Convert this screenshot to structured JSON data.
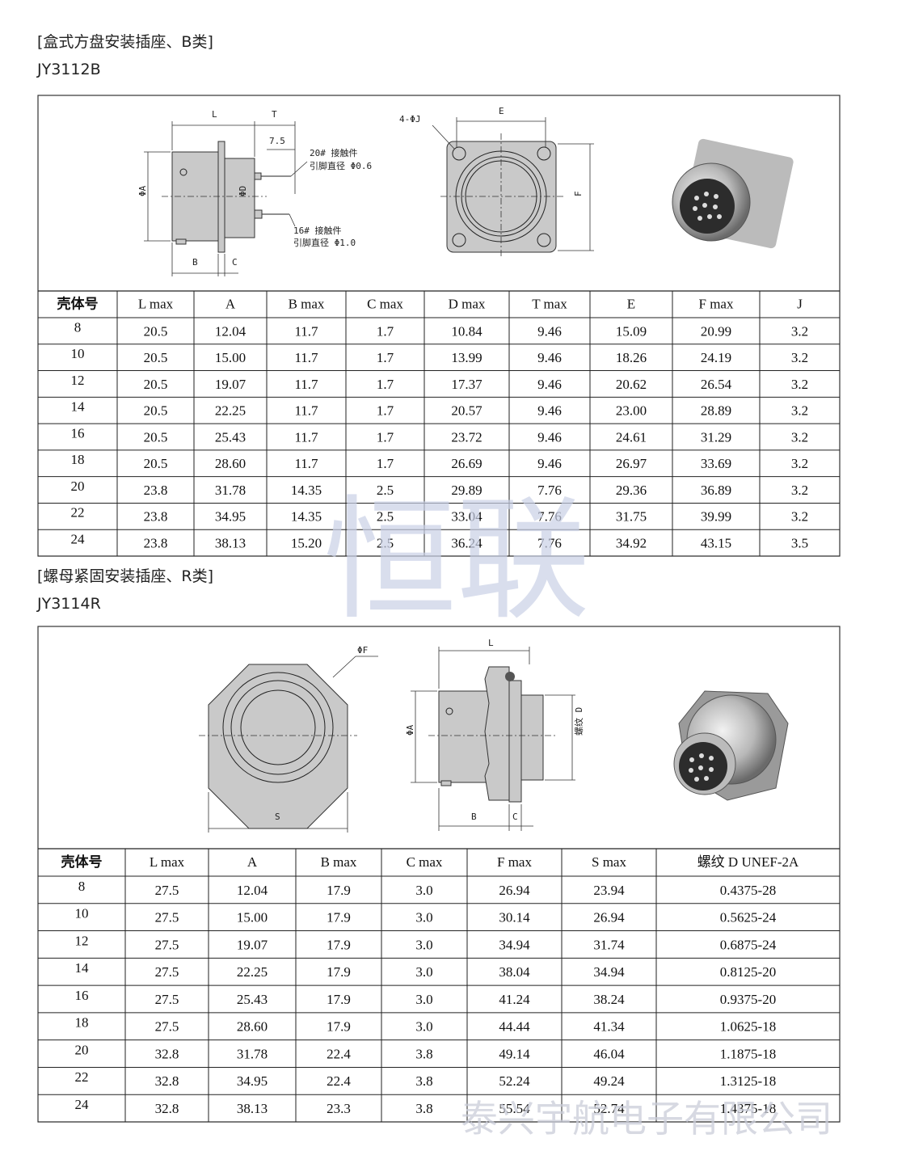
{
  "sections": [
    {
      "title": "[盒式方盘安装插座、B类]",
      "model": "JY3112B",
      "diagram_labels": [
        "L",
        "T",
        "7.5",
        "20# 接触件",
        "引脚直径 Φ0.6",
        "ΦA",
        "ΦD",
        "16# 接触件",
        "引脚直径 Φ1.0",
        "B",
        "C",
        "4-ΦJ",
        "E",
        "F"
      ],
      "table": {
        "header": [
          "壳体号",
          "L max",
          "A",
          "B max",
          "C max",
          "D max",
          "T max",
          "E",
          "F max",
          "J"
        ],
        "rows": [
          [
            "8",
            "20.5",
            "12.04",
            "11.7",
            "1.7",
            "10.84",
            "9.46",
            "15.09",
            "20.99",
            "3.2"
          ],
          [
            "10",
            "20.5",
            "15.00",
            "11.7",
            "1.7",
            "13.99",
            "9.46",
            "18.26",
            "24.19",
            "3.2"
          ],
          [
            "12",
            "20.5",
            "19.07",
            "11.7",
            "1.7",
            "17.37",
            "9.46",
            "20.62",
            "26.54",
            "3.2"
          ],
          [
            "14",
            "20.5",
            "22.25",
            "11.7",
            "1.7",
            "20.57",
            "9.46",
            "23.00",
            "28.89",
            "3.2"
          ],
          [
            "16",
            "20.5",
            "25.43",
            "11.7",
            "1.7",
            "23.72",
            "9.46",
            "24.61",
            "31.29",
            "3.2"
          ],
          [
            "18",
            "20.5",
            "28.60",
            "11.7",
            "1.7",
            "26.69",
            "9.46",
            "26.97",
            "33.69",
            "3.2"
          ],
          [
            "20",
            "23.8",
            "31.78",
            "14.35",
            "2.5",
            "29.89",
            "7.76",
            "29.36",
            "36.89",
            "3.2"
          ],
          [
            "22",
            "23.8",
            "34.95",
            "14.35",
            "2.5",
            "33.04",
            "7.76",
            "31.75",
            "39.99",
            "3.2"
          ],
          [
            "24",
            "23.8",
            "38.13",
            "15.20",
            "2.5",
            "36.24",
            "7.76",
            "34.92",
            "43.15",
            "3.5"
          ]
        ]
      }
    },
    {
      "title": "[螺母紧固安装插座、R类]",
      "model": "JY3114R",
      "diagram_labels": [
        "ΦF",
        "S",
        "L",
        "ΦA",
        "螺纹 D",
        "B",
        "C"
      ],
      "table": {
        "header": [
          "壳体号",
          "L max",
          "A",
          "B max",
          "C max",
          "F max",
          "S max",
          "螺纹 D UNEF-2A"
        ],
        "rows": [
          [
            "8",
            "27.5",
            "12.04",
            "17.9",
            "3.0",
            "26.94",
            "23.94",
            "0.4375-28"
          ],
          [
            "10",
            "27.5",
            "15.00",
            "17.9",
            "3.0",
            "30.14",
            "26.94",
            "0.5625-24"
          ],
          [
            "12",
            "27.5",
            "19.07",
            "17.9",
            "3.0",
            "34.94",
            "31.74",
            "0.6875-24"
          ],
          [
            "14",
            "27.5",
            "22.25",
            "17.9",
            "3.0",
            "38.04",
            "34.94",
            "0.8125-20"
          ],
          [
            "16",
            "27.5",
            "25.43",
            "17.9",
            "3.0",
            "41.24",
            "38.24",
            "0.9375-20"
          ],
          [
            "18",
            "27.5",
            "28.60",
            "17.9",
            "3.0",
            "44.44",
            "41.34",
            "1.0625-18"
          ],
          [
            "20",
            "32.8",
            "31.78",
            "22.4",
            "3.8",
            "49.14",
            "46.04",
            "1.1875-18"
          ],
          [
            "22",
            "32.8",
            "34.95",
            "22.4",
            "3.8",
            "52.24",
            "49.24",
            "1.3125-18"
          ],
          [
            "24",
            "32.8",
            "38.13",
            "23.3",
            "3.8",
            "55.54",
            "52.74",
            "1.4375-18"
          ]
        ]
      }
    }
  ],
  "watermarks": [
    "恒联",
    "泰兴宇航电子有限公司"
  ]
}
